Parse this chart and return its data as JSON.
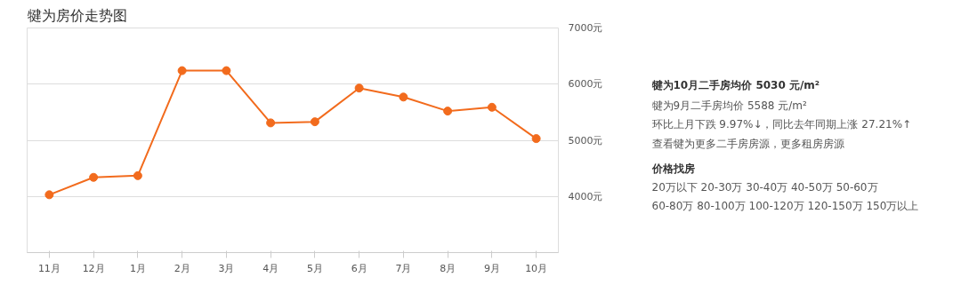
{
  "chart_data": {
    "type": "line",
    "title": "犍为房价走势图",
    "categories": [
      "11月",
      "12月",
      "1月",
      "2月",
      "3月",
      "4月",
      "5月",
      "6月",
      "7月",
      "8月",
      "9月",
      "10月"
    ],
    "series": [
      {
        "color": "#f26b1d",
        "values": [
          4030,
          4340,
          4370,
          6240,
          6240,
          5310,
          5330,
          5930,
          5770,
          5520,
          5588,
          5030
        ]
      }
    ],
    "ylim": [
      3000,
      7000
    ],
    "yticks": [
      {
        "value": 4000,
        "label": "4000元"
      },
      {
        "value": 5000,
        "label": "5000元"
      },
      {
        "value": 6000,
        "label": "6000元"
      },
      {
        "value": 7000,
        "label": "7000元"
      }
    ],
    "grid": "y",
    "marker": "circle",
    "line_style": "solid",
    "annotations": [
      "犍为10月二手房均价 5030 元/m²",
      "犍为9月二手房均价 5588 元/m²",
      "环比上月下跌 9.97%↓，同比去年同期上涨 27.21%↑",
      "查看犍为更多二手房房源，更多租房房源",
      "价格找房",
      "20万以下    20-30万    30-40万    40-50万    50-60万",
      "60-80万    80-100万    100-120万    120-150万    150万以上"
    ]
  }
}
